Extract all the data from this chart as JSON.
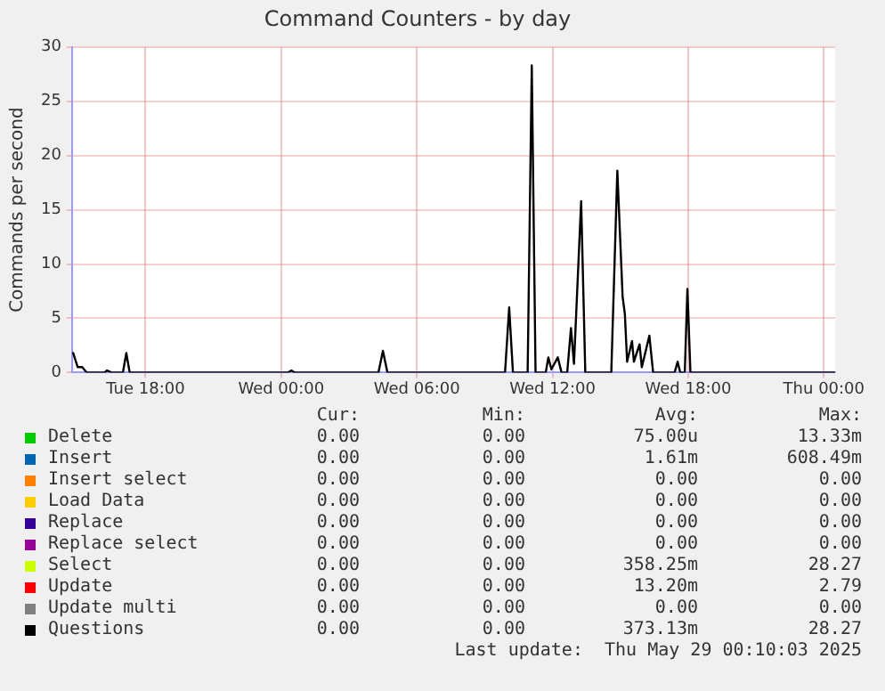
{
  "chart_data": {
    "type": "line",
    "title": "Command Counters - by day",
    "ylabel": "Commands per second",
    "xlim": [
      "2025-05-27T14:45",
      "2025-05-29T00:30"
    ],
    "xticks": [
      {
        "value": "2025-05-27T18:00",
        "label": "Tue 18:00"
      },
      {
        "value": "2025-05-28T00:00",
        "label": "Wed 00:00"
      },
      {
        "value": "2025-05-28T06:00",
        "label": "Wed 06:00"
      },
      {
        "value": "2025-05-28T12:00",
        "label": "Wed 12:00"
      },
      {
        "value": "2025-05-28T18:00",
        "label": "Wed 18:00"
      },
      {
        "value": "2025-05-29T00:00",
        "label": "Thu 00:00"
      }
    ],
    "ylim": [
      0,
      30
    ],
    "yticks": [
      0,
      5,
      10,
      15,
      20,
      25,
      30
    ],
    "grid": true,
    "legend": "bottom",
    "marker": "none",
    "line_style": "solid",
    "series": [
      {
        "name": "Delete",
        "color": "#00cc00",
        "values": [
          null
        ]
      },
      {
        "name": "Insert",
        "color": "#0066b3",
        "values": [
          null
        ]
      },
      {
        "name": "Insert select",
        "color": "#ff8000",
        "values": [
          null
        ]
      },
      {
        "name": "Load Data",
        "color": "#ffcc00",
        "values": [
          null
        ]
      },
      {
        "name": "Replace",
        "color": "#330099",
        "values": [
          null
        ]
      },
      {
        "name": "Replace select",
        "color": "#990099",
        "values": [
          null
        ]
      },
      {
        "name": "Select",
        "color": "#ccff00",
        "values": [
          null
        ]
      },
      {
        "name": "Update",
        "color": "#ff0000",
        "values": [
          null
        ]
      },
      {
        "name": "Update multi",
        "color": "#808080",
        "values": [
          null
        ]
      },
      {
        "name": "Questions",
        "color": "#000000",
        "x": [
          "2025-05-27T14:48",
          "2025-05-27T15:00",
          "2025-05-27T15:12",
          "2025-05-27T15:24",
          "2025-05-27T16:12",
          "2025-05-27T16:18",
          "2025-05-27T16:30",
          "2025-05-27T17:00",
          "2025-05-27T17:09",
          "2025-05-27T17:18",
          "2025-05-28T00:18",
          "2025-05-28T00:27",
          "2025-05-28T00:36",
          "2025-05-28T04:18",
          "2025-05-28T04:30",
          "2025-05-28T04:42",
          "2025-05-28T09:54",
          "2025-05-28T10:05",
          "2025-05-28T10:15",
          "2025-05-28T10:54",
          "2025-05-28T11:05",
          "2025-05-28T11:15",
          "2025-05-28T11:42",
          "2025-05-28T11:49",
          "2025-05-28T11:57",
          "2025-05-28T12:14",
          "2025-05-28T12:24",
          "2025-05-28T12:39",
          "2025-05-28T12:49",
          "2025-05-28T12:57",
          "2025-05-28T13:16",
          "2025-05-28T13:27",
          "2025-05-28T14:36",
          "2025-05-28T14:52",
          "2025-05-28T15:06",
          "2025-05-28T15:12",
          "2025-05-28T15:18",
          "2025-05-28T15:31",
          "2025-05-28T15:36",
          "2025-05-28T15:51",
          "2025-05-28T15:57",
          "2025-05-28T16:17",
          "2025-05-28T16:27",
          "2025-05-28T17:24",
          "2025-05-28T17:32",
          "2025-05-28T17:39",
          "2025-05-28T17:51",
          "2025-05-28T17:58",
          "2025-05-28T18:06",
          "2025-05-29T00:30"
        ],
        "values": [
          1.8,
          0.5,
          0.5,
          0,
          0,
          0.2,
          0,
          0,
          1.8,
          0,
          0,
          0.2,
          0,
          0,
          2.0,
          0,
          0,
          6.0,
          0,
          0,
          28.3,
          0,
          0,
          1.4,
          0.3,
          1.4,
          0,
          0,
          4.1,
          0.8,
          15.8,
          0,
          0,
          18.6,
          7,
          5.4,
          1,
          2.9,
          1,
          2.6,
          0.5,
          3.4,
          0,
          0,
          1.0,
          0,
          0,
          7.7,
          0,
          0
        ]
      }
    ],
    "annotations": [
      "Cur:",
      "Min:",
      "Avg:",
      "Max:",
      "0.00",
      "0.00",
      "75.00u",
      "13.33m",
      "0.00",
      "0.00",
      "1.61m",
      "608.49m",
      "0.00",
      "0.00",
      "0.00",
      "0.00",
      "0.00",
      "0.00",
      "0.00",
      "0.00",
      "0.00",
      "0.00",
      "0.00",
      "0.00",
      "0.00",
      "0.00",
      "0.00",
      "0.00",
      "0.00",
      "0.00",
      "358.25m",
      "28.27",
      "0.00",
      "0.00",
      "13.20m",
      "2.79",
      "0.00",
      "0.00",
      "0.00",
      "0.00",
      "0.00",
      "0.00",
      "373.13m",
      "28.27",
      "Last update:  Thu May 29 00:10:03 2025"
    ]
  }
}
